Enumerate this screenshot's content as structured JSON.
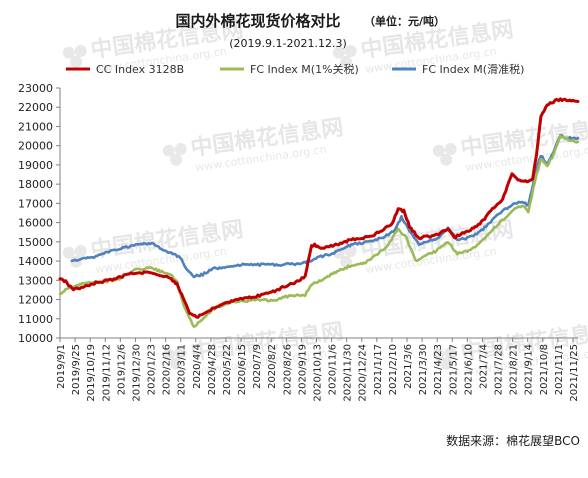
{
  "chart_data": {
    "type": "line",
    "title": "国内外棉花现货价格对比",
    "unit_note": "（单位：元/吨）",
    "subtitle": "(2019.9.1-2021.12.3)",
    "source": "数据来源：棉花展望BCO",
    "watermark": {
      "name": "中国棉花信息网",
      "url": "www.cottonchina.org.cn"
    },
    "legend_position": "top",
    "grid": false,
    "ylim": [
      10000,
      23000
    ],
    "y_ticks": [
      10000,
      11000,
      12000,
      13000,
      14000,
      15000,
      16000,
      17000,
      18000,
      19000,
      20000,
      21000,
      22000,
      23000
    ],
    "x_range": [
      "2019-09-01",
      "2021-12-03"
    ],
    "x_ticks": [
      "2019/9/1",
      "2019/9/25",
      "2019/10/19",
      "2019/11/12",
      "2019/12/6",
      "2019/12/30",
      "2020/1/23",
      "2020/2/16",
      "2020/3/11",
      "2020/4/4",
      "2020/4/28",
      "2020/5/22",
      "2020/6/15",
      "2020/7/9",
      "2020/8/2",
      "2020/8/26",
      "2020/9/19",
      "2020/10/13",
      "2020/11/6",
      "2020/11/30",
      "2020/12/24",
      "2021/1/17",
      "2021/2/10",
      "2021/3/6",
      "2021/3/30",
      "2021/4/23",
      "2021/5/17",
      "2021/6/10",
      "2021/7/4",
      "2021/7/28",
      "2021/8/21",
      "2021/9/14",
      "2021/10/8",
      "2021/11/1",
      "2021/11/25"
    ],
    "series": [
      {
        "name": "CC Index 3128B",
        "color": "#c00000",
        "points": [
          [
            "2019-09-01",
            13100
          ],
          [
            "2019-09-10",
            12950
          ],
          [
            "2019-09-20",
            12550
          ],
          [
            "2019-10-05",
            12600
          ],
          [
            "2019-10-20",
            12800
          ],
          [
            "2019-11-10",
            12950
          ],
          [
            "2019-12-01",
            13100
          ],
          [
            "2019-12-20",
            13350
          ],
          [
            "2020-01-05",
            13400
          ],
          [
            "2020-01-20",
            13400
          ],
          [
            "2020-02-05",
            13250
          ],
          [
            "2020-02-20",
            13200
          ],
          [
            "2020-03-05",
            12800
          ],
          [
            "2020-03-15",
            12100
          ],
          [
            "2020-03-25",
            11300
          ],
          [
            "2020-04-05",
            11100
          ],
          [
            "2020-04-20",
            11300
          ],
          [
            "2020-05-05",
            11600
          ],
          [
            "2020-05-20",
            11800
          ],
          [
            "2020-06-10",
            12000
          ],
          [
            "2020-07-01",
            12100
          ],
          [
            "2020-07-20",
            12250
          ],
          [
            "2020-08-05",
            12400
          ],
          [
            "2020-08-25",
            12700
          ],
          [
            "2020-09-10",
            12900
          ],
          [
            "2020-09-25",
            13200
          ],
          [
            "2020-10-05",
            14800
          ],
          [
            "2020-10-10",
            14850
          ],
          [
            "2020-10-20",
            14650
          ],
          [
            "2020-11-05",
            14800
          ],
          [
            "2020-11-20",
            14900
          ],
          [
            "2020-12-05",
            15100
          ],
          [
            "2020-12-24",
            15200
          ],
          [
            "2021-01-10",
            15300
          ],
          [
            "2021-01-25",
            15600
          ],
          [
            "2021-02-10",
            15950
          ],
          [
            "2021-02-20",
            16700
          ],
          [
            "2021-03-01",
            16600
          ],
          [
            "2021-03-10",
            15800
          ],
          [
            "2021-03-25",
            15200
          ],
          [
            "2021-04-10",
            15300
          ],
          [
            "2021-04-25",
            15400
          ],
          [
            "2021-05-10",
            15700
          ],
          [
            "2021-05-20",
            15200
          ],
          [
            "2021-06-05",
            15500
          ],
          [
            "2021-06-20",
            15700
          ],
          [
            "2021-07-05",
            16100
          ],
          [
            "2021-07-20",
            16700
          ],
          [
            "2021-08-05",
            17200
          ],
          [
            "2021-08-20",
            18500
          ],
          [
            "2021-09-01",
            18200
          ],
          [
            "2021-09-15",
            18100
          ],
          [
            "2021-09-22",
            18300
          ],
          [
            "2021-09-28",
            19500
          ],
          [
            "2021-10-05",
            21500
          ],
          [
            "2021-10-15",
            22100
          ],
          [
            "2021-10-25",
            22300
          ],
          [
            "2021-11-05",
            22400
          ],
          [
            "2021-11-20",
            22350
          ],
          [
            "2021-12-03",
            22300
          ]
        ]
      },
      {
        "name": "FC Index M(1%关税)",
        "color": "#9bbb59",
        "points": [
          [
            "2019-09-01",
            12300
          ],
          [
            "2019-09-10",
            12500
          ],
          [
            "2019-09-20",
            12650
          ],
          [
            "2019-10-05",
            12800
          ],
          [
            "2019-10-25",
            12900
          ],
          [
            "2019-11-15",
            12950
          ],
          [
            "2019-12-05",
            13100
          ],
          [
            "2019-12-25",
            13500
          ],
          [
            "2020-01-10",
            13600
          ],
          [
            "2020-01-22",
            13700
          ],
          [
            "2020-02-05",
            13500
          ],
          [
            "2020-02-20",
            13350
          ],
          [
            "2020-03-05",
            13000
          ],
          [
            "2020-03-15",
            11800
          ],
          [
            "2020-03-25",
            11000
          ],
          [
            "2020-04-01",
            10600
          ],
          [
            "2020-04-15",
            11000
          ],
          [
            "2020-05-01",
            11500
          ],
          [
            "2020-05-15",
            11700
          ],
          [
            "2020-06-01",
            11900
          ],
          [
            "2020-06-20",
            11900
          ],
          [
            "2020-07-10",
            12000
          ],
          [
            "2020-07-25",
            11950
          ],
          [
            "2020-08-10",
            12000
          ],
          [
            "2020-08-25",
            12150
          ],
          [
            "2020-09-10",
            12200
          ],
          [
            "2020-09-25",
            12250
          ],
          [
            "2020-10-05",
            12800
          ],
          [
            "2020-10-20",
            13000
          ],
          [
            "2020-11-05",
            13300
          ],
          [
            "2020-11-25",
            13600
          ],
          [
            "2020-12-10",
            13800
          ],
          [
            "2020-12-30",
            13900
          ],
          [
            "2021-01-15",
            14300
          ],
          [
            "2021-02-01",
            14700
          ],
          [
            "2021-02-20",
            15700
          ],
          [
            "2021-03-05",
            15200
          ],
          [
            "2021-03-20",
            14000
          ],
          [
            "2021-04-05",
            14300
          ],
          [
            "2021-04-20",
            14500
          ],
          [
            "2021-05-10",
            15000
          ],
          [
            "2021-05-25",
            14400
          ],
          [
            "2021-06-10",
            14500
          ],
          [
            "2021-06-25",
            14800
          ],
          [
            "2021-07-10",
            15300
          ],
          [
            "2021-07-25",
            15800
          ],
          [
            "2021-08-10",
            16300
          ],
          [
            "2021-08-25",
            16700
          ],
          [
            "2021-09-05",
            16900
          ],
          [
            "2021-09-15",
            16600
          ],
          [
            "2021-09-28",
            18500
          ],
          [
            "2021-10-05",
            19300
          ],
          [
            "2021-10-15",
            19000
          ],
          [
            "2021-10-25",
            19500
          ],
          [
            "2021-11-05",
            20500
          ],
          [
            "2021-11-20",
            20300
          ],
          [
            "2021-12-03",
            20200
          ]
        ]
      },
      {
        "name": "FC Index M(滑准税)",
        "color": "#4f81bd",
        "points": [
          [
            "2019-09-20",
            14000
          ],
          [
            "2019-10-05",
            14100
          ],
          [
            "2019-10-25",
            14200
          ],
          [
            "2019-11-15",
            14450
          ],
          [
            "2019-12-05",
            14650
          ],
          [
            "2019-12-25",
            14800
          ],
          [
            "2020-01-10",
            14900
          ],
          [
            "2020-01-25",
            14900
          ],
          [
            "2020-02-10",
            14650
          ],
          [
            "2020-02-25",
            14400
          ],
          [
            "2020-03-10",
            14200
          ],
          [
            "2020-03-20",
            13600
          ],
          [
            "2020-04-01",
            13200
          ],
          [
            "2020-04-15",
            13300
          ],
          [
            "2020-05-01",
            13600
          ],
          [
            "2020-05-20",
            13700
          ],
          [
            "2020-06-10",
            13800
          ],
          [
            "2020-07-01",
            13850
          ],
          [
            "2020-07-20",
            13800
          ],
          [
            "2020-08-10",
            13800
          ],
          [
            "2020-08-30",
            13850
          ],
          [
            "2020-09-19",
            13850
          ],
          [
            "2020-10-01",
            14000
          ],
          [
            "2020-10-20",
            14250
          ],
          [
            "2020-11-05",
            14350
          ],
          [
            "2020-11-25",
            14700
          ],
          [
            "2020-12-15",
            14900
          ],
          [
            "2021-01-05",
            15000
          ],
          [
            "2021-01-25",
            15200
          ],
          [
            "2021-02-15",
            15600
          ],
          [
            "2021-02-25",
            16300
          ],
          [
            "2021-03-10",
            15600
          ],
          [
            "2021-03-25",
            14900
          ],
          [
            "2021-04-10",
            15050
          ],
          [
            "2021-04-25",
            15200
          ],
          [
            "2021-05-10",
            15700
          ],
          [
            "2021-05-25",
            15100
          ],
          [
            "2021-06-10",
            15200
          ],
          [
            "2021-06-25",
            15400
          ],
          [
            "2021-07-10",
            15800
          ],
          [
            "2021-07-25",
            16300
          ],
          [
            "2021-08-10",
            16700
          ],
          [
            "2021-08-25",
            17000
          ],
          [
            "2021-09-05",
            17100
          ],
          [
            "2021-09-15",
            16900
          ],
          [
            "2021-09-28",
            18800
          ],
          [
            "2021-10-05",
            19500
          ],
          [
            "2021-10-15",
            19000
          ],
          [
            "2021-10-25",
            19700
          ],
          [
            "2021-11-05",
            20500
          ],
          [
            "2021-11-20",
            20400
          ],
          [
            "2021-12-03",
            20400
          ]
        ]
      }
    ]
  }
}
